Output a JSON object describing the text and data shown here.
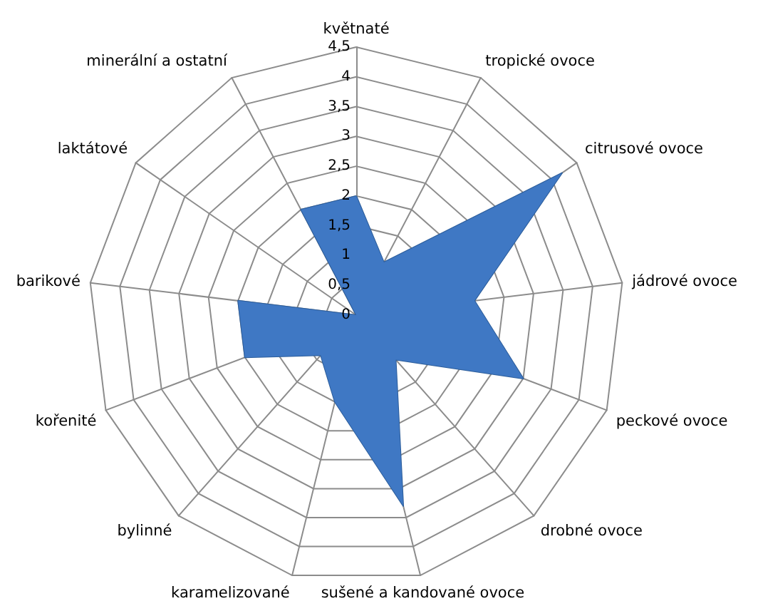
{
  "chart_data": {
    "type": "radar",
    "categories": [
      "květnaté",
      "tropické ovoce",
      "citrusové ovoce",
      "jádrové ovoce",
      "peckové ovoce",
      "drobné ovoce",
      "sušené a kandované ovoce",
      "karamelizované",
      "bylinné",
      "kořenité",
      "barikové",
      "laktátové",
      "minerální a ostatní"
    ],
    "series": [
      {
        "color": "#3f78c4",
        "values": [
          2,
          1,
          4.2,
          2,
          3,
          1,
          3.3,
          1.5,
          0.9,
          2,
          2,
          0,
          2
        ]
      }
    ],
    "ylim": [
      0,
      4.5
    ],
    "yticks": [
      {
        "value": 0,
        "label": "0"
      },
      {
        "value": 0.5,
        "label": "0,5"
      },
      {
        "value": 1,
        "label": "1"
      },
      {
        "value": 1.5,
        "label": "1,5"
      },
      {
        "value": 2,
        "label": "2"
      },
      {
        "value": 2.5,
        "label": "2,5"
      },
      {
        "value": 3,
        "label": "3"
      },
      {
        "value": 3.5,
        "label": "3,5"
      },
      {
        "value": 4,
        "label": "4"
      },
      {
        "value": 4.5,
        "label": "4,5"
      }
    ]
  }
}
